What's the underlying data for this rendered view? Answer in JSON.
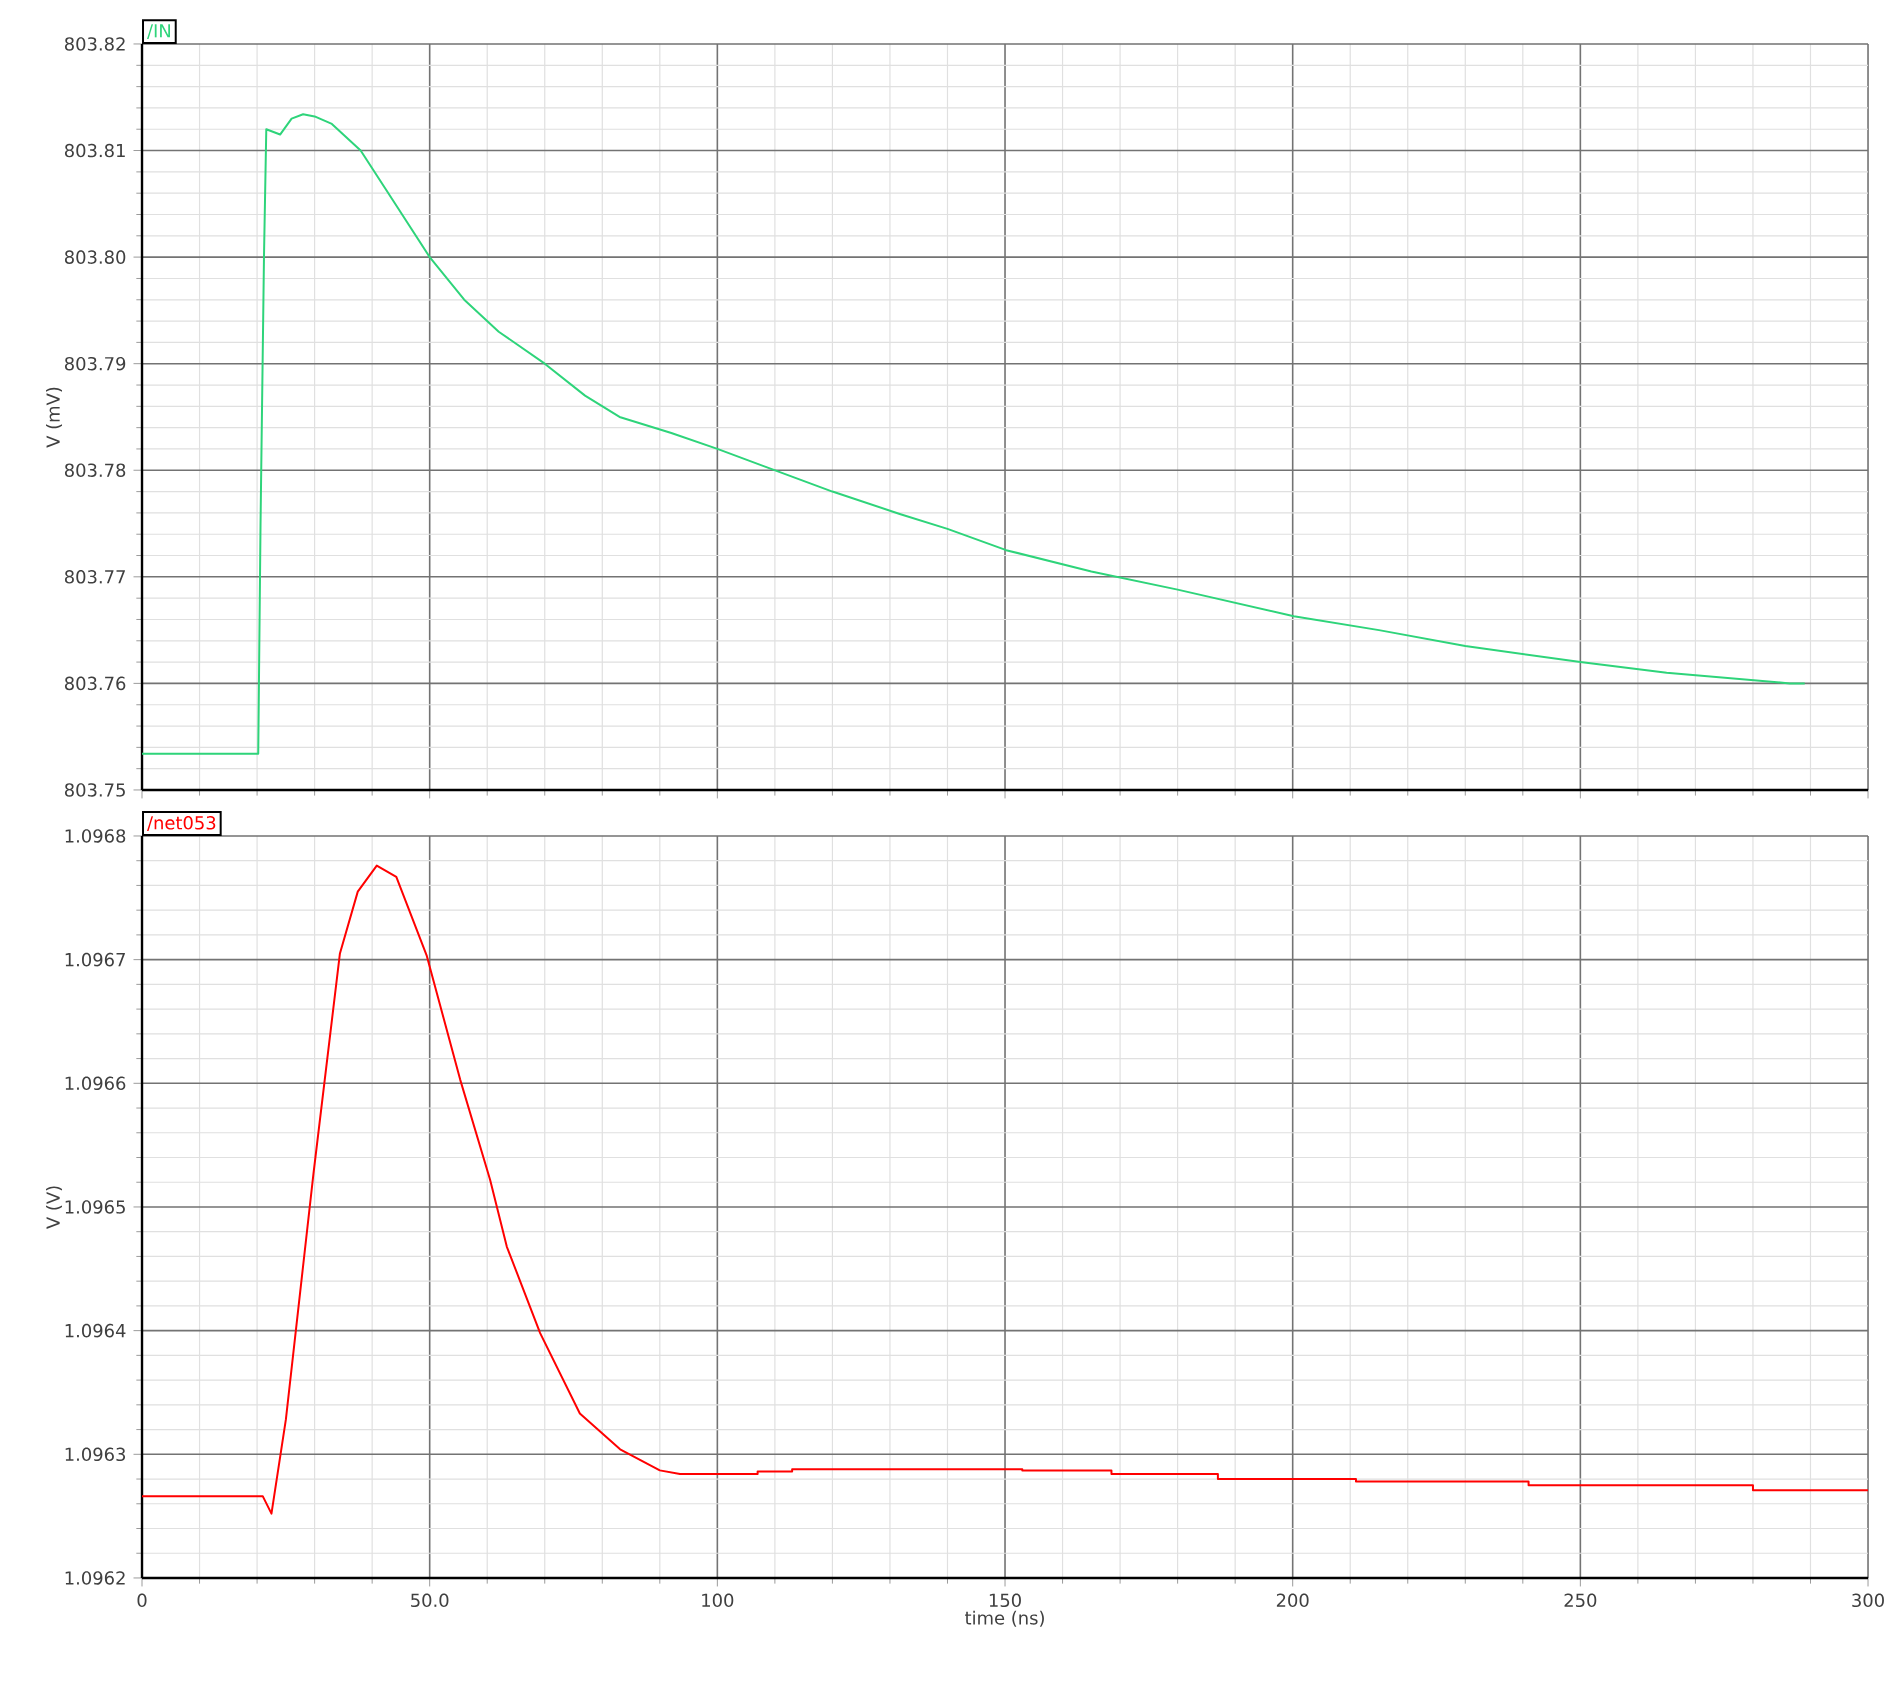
{
  "chart_data": [
    {
      "type": "line",
      "ylabel": "V (mV)",
      "grid": true,
      "tick_labels": "y",
      "xlim": [
        0,
        300
      ],
      "xticks": [
        0,
        50,
        100,
        150,
        200,
        250,
        300
      ],
      "ylim": [
        803.75,
        803.82
      ],
      "yticks": [
        803.75,
        803.76,
        803.77,
        803.78,
        803.79,
        {
          "value": 803.8,
          "label": "803.80"
        },
        803.81,
        803.82
      ],
      "series": [
        {
          "name": "/IN",
          "color": "#2ed47a",
          "x": [
            0,
            20.2,
            20.6,
            21.2,
            21.6,
            24,
            26,
            28,
            30,
            33,
            38,
            44,
            50,
            56,
            62,
            70,
            77,
            83,
            92,
            100,
            110,
            120,
            131.7,
            140,
            150.2,
            165,
            180,
            200.2,
            215,
            230,
            250,
            265,
            286.4,
            289
          ],
          "values": [
            803.7534,
            803.7534,
            803.775,
            803.8,
            803.812,
            803.8115,
            803.813,
            803.8134,
            803.8132,
            803.8125,
            803.81,
            803.805,
            803.8,
            803.796,
            803.793,
            803.79,
            803.787,
            803.785,
            803.7835,
            803.782,
            803.78,
            803.778,
            803.7759,
            803.7745,
            803.7725,
            803.7705,
            803.7688,
            803.7663,
            803.765,
            803.7635,
            803.762,
            803.761,
            803.76,
            803.76
          ]
        }
      ]
    },
    {
      "type": "line",
      "xlabel": "time (ns)",
      "ylabel": "V (V)",
      "grid": true,
      "xlim": [
        0,
        300
      ],
      "xticks": [
        0,
        {
          "value": 50,
          "label": "50.0"
        },
        100,
        150,
        200,
        250,
        300
      ],
      "ylim": [
        1.0962,
        1.0968
      ],
      "yticks": [
        1.0962,
        1.0963,
        1.0964,
        1.0965,
        1.0966,
        1.0967,
        1.0968
      ],
      "series": [
        {
          "name": "/net053",
          "color": "#ff0000",
          "x": [
            0,
            21,
            22.5,
            25,
            29.8,
            34.4,
            37.5,
            40.8,
            44.2,
            49.5,
            55.3,
            60.5,
            63.4,
            69.2,
            76.1,
            83.1,
            90,
            93.5,
            107,
            107,
            113,
            113,
            153,
            153,
            168.5,
            168.5,
            187,
            187,
            211,
            211,
            241,
            241,
            280,
            280,
            300
          ],
          "values": [
            1.096266,
            1.096266,
            1.096252,
            1.096328,
            1.096527,
            1.096705,
            1.096755,
            1.096776,
            1.096767,
            1.096703,
            1.096603,
            1.096522,
            1.096468,
            1.096398,
            1.096333,
            1.096304,
            1.096287,
            1.096284,
            1.096284,
            1.096286,
            1.096286,
            1.096288,
            1.096288,
            1.096287,
            1.096287,
            1.096284,
            1.096284,
            1.09628,
            1.09628,
            1.096278,
            1.096278,
            1.096275,
            1.096275,
            1.096271,
            1.096271
          ]
        }
      ]
    }
  ]
}
